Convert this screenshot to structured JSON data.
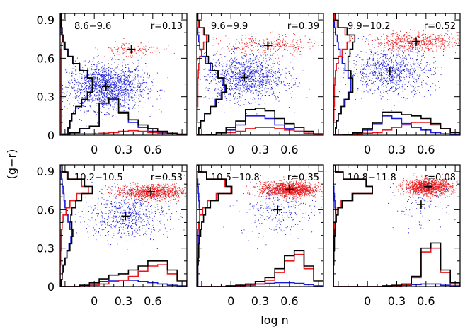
{
  "chart_data": {
    "type": "scatter",
    "xlabel": "log n",
    "ylabel": "(g−r)",
    "xlim": [
      -0.35,
      0.95
    ],
    "ylim": [
      0,
      0.95
    ],
    "xticks": [
      0,
      0.3,
      0.6
    ],
    "xtick_labels": [
      "0",
      "0.3",
      "0.6"
    ],
    "yticks": [
      0,
      0.3,
      0.6,
      0.9
    ],
    "ytick_labels": [
      "0",
      "0.3",
      "0.6",
      "0.9"
    ],
    "colors": {
      "red": "#e8191d",
      "blue": "#1a1ad9",
      "black": "#000000"
    },
    "panels": [
      {
        "range_label": "8.6−9.6",
        "r_label": "r=0.13",
        "red_center": [
          0.38,
          0.67
        ],
        "blue_center": [
          0.12,
          0.38
        ],
        "red_spread": [
          0.16,
          0.035
        ],
        "blue_spread": [
          0.2,
          0.09
        ],
        "n_red": 150,
        "n_blue": 1800,
        "hist_x": [
          0.0,
          0.02,
          0.05,
          0.07,
          0.25,
          0.29,
          0.18,
          0.12,
          0.08,
          0.05,
          0.03,
          0.015,
          0.008
        ],
        "hist_x_red": [
          0.01,
          0.01,
          0.01,
          0.01,
          0.015,
          0.02,
          0.03,
          0.035,
          0.03,
          0.02,
          0.015,
          0.01,
          0.005
        ],
        "hist_x_blue": [
          0.0,
          0.02,
          0.05,
          0.07,
          0.25,
          0.28,
          0.17,
          0.1,
          0.06,
          0.03,
          0.02,
          0.01,
          0.005
        ],
        "hist_y": [
          0.08,
          0.1,
          0.12,
          0.16,
          0.22,
          0.28,
          0.33,
          0.33,
          0.28,
          0.2,
          0.13,
          0.08,
          0.05,
          0.03,
          0.02,
          0.01,
          0.01
        ],
        "hist_y_red": [
          0.01,
          0.01,
          0.01,
          0.01,
          0.01,
          0.01,
          0.01,
          0.01,
          0.01,
          0.01,
          0.01,
          0.01,
          0.015,
          0.02,
          0.02,
          0.01,
          0.005
        ],
        "hist_y_blue": [
          0.08,
          0.1,
          0.12,
          0.16,
          0.22,
          0.28,
          0.33,
          0.33,
          0.28,
          0.2,
          0.13,
          0.08,
          0.04,
          0.02,
          0.01,
          0.005,
          0.005
        ]
      },
      {
        "range_label": "9.6−9.9",
        "r_label": "r=0.39",
        "red_center": [
          0.38,
          0.7
        ],
        "blue_center": [
          0.14,
          0.45
        ],
        "red_spread": [
          0.25,
          0.04
        ],
        "blue_spread": [
          0.2,
          0.09
        ],
        "n_red": 350,
        "n_blue": 1300,
        "hist_x": [
          0.0,
          0.005,
          0.02,
          0.06,
          0.11,
          0.2,
          0.21,
          0.19,
          0.13,
          0.09,
          0.06,
          0.03,
          0.01
        ],
        "hist_x_red": [
          0.0,
          0.0,
          0.01,
          0.02,
          0.03,
          0.05,
          0.06,
          0.06,
          0.05,
          0.04,
          0.03,
          0.015,
          0.005
        ],
        "hist_x_blue": [
          0.0,
          0.005,
          0.01,
          0.04,
          0.08,
          0.15,
          0.15,
          0.13,
          0.08,
          0.05,
          0.03,
          0.015,
          0.005
        ],
        "hist_y": [
          0.02,
          0.04,
          0.08,
          0.14,
          0.2,
          0.26,
          0.3,
          0.28,
          0.22,
          0.16,
          0.12,
          0.1,
          0.1,
          0.12,
          0.08,
          0.03,
          0.01
        ],
        "hist_y_red": [
          0.0,
          0.0,
          0.005,
          0.005,
          0.01,
          0.01,
          0.01,
          0.01,
          0.015,
          0.02,
          0.03,
          0.05,
          0.07,
          0.1,
          0.07,
          0.02,
          0.01
        ],
        "hist_y_blue": [
          0.02,
          0.04,
          0.08,
          0.14,
          0.19,
          0.25,
          0.29,
          0.27,
          0.21,
          0.14,
          0.09,
          0.05,
          0.03,
          0.02,
          0.01,
          0.005,
          0.0
        ]
      },
      {
        "range_label": "9.9−10.2",
        "r_label": "r=0.52",
        "red_center": [
          0.5,
          0.73
        ],
        "blue_center": [
          0.23,
          0.5
        ],
        "red_spread": [
          0.22,
          0.035
        ],
        "blue_spread": [
          0.22,
          0.09
        ],
        "n_red": 650,
        "n_blue": 950,
        "hist_x": [
          0.0,
          0.005,
          0.02,
          0.05,
          0.1,
          0.18,
          0.18,
          0.16,
          0.15,
          0.13,
          0.09,
          0.05,
          0.02
        ],
        "hist_x_red": [
          0.0,
          0.0,
          0.005,
          0.015,
          0.02,
          0.04,
          0.06,
          0.08,
          0.1,
          0.1,
          0.08,
          0.05,
          0.02
        ],
        "hist_x_blue": [
          0.0,
          0.005,
          0.015,
          0.04,
          0.09,
          0.15,
          0.13,
          0.09,
          0.06,
          0.04,
          0.02,
          0.01,
          0.005
        ],
        "hist_y": [
          0.02,
          0.03,
          0.05,
          0.08,
          0.12,
          0.16,
          0.2,
          0.2,
          0.18,
          0.15,
          0.15,
          0.17,
          0.2,
          0.22,
          0.14,
          0.05,
          0.02
        ],
        "hist_y_red": [
          0.0,
          0.0,
          0.005,
          0.005,
          0.01,
          0.01,
          0.01,
          0.015,
          0.02,
          0.03,
          0.05,
          0.09,
          0.14,
          0.17,
          0.12,
          0.04,
          0.01
        ],
        "hist_y_blue": [
          0.02,
          0.03,
          0.05,
          0.08,
          0.11,
          0.15,
          0.18,
          0.18,
          0.15,
          0.12,
          0.09,
          0.07,
          0.05,
          0.04,
          0.02,
          0.01,
          0.0
        ]
      },
      {
        "range_label": "10.2−10.5",
        "r_label": "r=0.53",
        "red_center": [
          0.58,
          0.74
        ],
        "blue_center": [
          0.32,
          0.55
        ],
        "red_spread": [
          0.18,
          0.03
        ],
        "blue_spread": [
          0.22,
          0.09
        ],
        "n_red": 1100,
        "n_blue": 700,
        "hist_x": [
          0.0,
          0.0,
          0.01,
          0.03,
          0.06,
          0.09,
          0.1,
          0.13,
          0.16,
          0.2,
          0.2,
          0.13,
          0.05
        ],
        "hist_x_red": [
          0.0,
          0.0,
          0.0,
          0.01,
          0.02,
          0.04,
          0.05,
          0.08,
          0.12,
          0.16,
          0.17,
          0.1,
          0.04
        ],
        "hist_x_blue": [
          0.0,
          0.0,
          0.01,
          0.02,
          0.04,
          0.05,
          0.05,
          0.05,
          0.04,
          0.03,
          0.02,
          0.01,
          0.005
        ],
        "hist_y": [
          0.01,
          0.02,
          0.03,
          0.05,
          0.07,
          0.1,
          0.12,
          0.13,
          0.12,
          0.11,
          0.12,
          0.16,
          0.22,
          0.33,
          0.25,
          0.08,
          0.02
        ],
        "hist_y_red": [
          0.0,
          0.0,
          0.0,
          0.005,
          0.005,
          0.01,
          0.01,
          0.01,
          0.02,
          0.03,
          0.06,
          0.1,
          0.17,
          0.29,
          0.22,
          0.07,
          0.015
        ],
        "hist_y_blue": [
          0.01,
          0.02,
          0.03,
          0.05,
          0.07,
          0.09,
          0.11,
          0.12,
          0.1,
          0.08,
          0.06,
          0.05,
          0.04,
          0.03,
          0.02,
          0.01,
          0.0
        ]
      },
      {
        "range_label": "10.5−10.8",
        "r_label": "r=0.35",
        "red_center": [
          0.6,
          0.76
        ],
        "blue_center": [
          0.48,
          0.6
        ],
        "red_spread": [
          0.15,
          0.03
        ],
        "blue_spread": [
          0.2,
          0.1
        ],
        "n_red": 1400,
        "n_blue": 300,
        "hist_x": [
          0.0,
          0.0,
          0.0,
          0.005,
          0.01,
          0.02,
          0.04,
          0.07,
          0.14,
          0.24,
          0.28,
          0.16,
          0.05
        ],
        "hist_x_red": [
          0.0,
          0.0,
          0.0,
          0.0,
          0.005,
          0.01,
          0.02,
          0.05,
          0.11,
          0.2,
          0.25,
          0.14,
          0.04
        ],
        "hist_x_blue": [
          0.0,
          0.0,
          0.0,
          0.005,
          0.01,
          0.015,
          0.02,
          0.025,
          0.03,
          0.03,
          0.025,
          0.015,
          0.005
        ],
        "hist_y": [
          0.01,
          0.01,
          0.01,
          0.015,
          0.02,
          0.02,
          0.03,
          0.04,
          0.05,
          0.07,
          0.09,
          0.14,
          0.22,
          0.36,
          0.3,
          0.1,
          0.02
        ],
        "hist_y_red": [
          0.0,
          0.0,
          0.0,
          0.0,
          0.005,
          0.005,
          0.01,
          0.01,
          0.02,
          0.03,
          0.06,
          0.11,
          0.2,
          0.35,
          0.29,
          0.1,
          0.02
        ],
        "hist_y_blue": [
          0.01,
          0.01,
          0.01,
          0.01,
          0.015,
          0.015,
          0.02,
          0.025,
          0.03,
          0.03,
          0.03,
          0.025,
          0.02,
          0.015,
          0.01,
          0.005,
          0.0
        ]
      },
      {
        "range_label": "10.8−11.8",
        "r_label": "r=0.08",
        "red_center": [
          0.62,
          0.78
        ],
        "blue_center": [
          0.55,
          0.64
        ],
        "red_spread": [
          0.12,
          0.03
        ],
        "blue_spread": [
          0.15,
          0.1
        ],
        "n_red": 1300,
        "n_blue": 120,
        "hist_x": [
          0.0,
          0.0,
          0.0,
          0.0,
          0.0,
          0.005,
          0.01,
          0.02,
          0.08,
          0.3,
          0.34,
          0.13,
          0.03
        ],
        "hist_x_red": [
          0.0,
          0.0,
          0.0,
          0.0,
          0.0,
          0.0,
          0.005,
          0.015,
          0.07,
          0.27,
          0.3,
          0.11,
          0.02
        ],
        "hist_x_blue": [
          0.0,
          0.0,
          0.0,
          0.0,
          0.0,
          0.005,
          0.005,
          0.01,
          0.015,
          0.02,
          0.02,
          0.01,
          0.005
        ],
        "hist_y": [
          0.0,
          0.0,
          0.0,
          0.005,
          0.005,
          0.01,
          0.01,
          0.015,
          0.02,
          0.03,
          0.05,
          0.09,
          0.2,
          0.4,
          0.34,
          0.1,
          0.02
        ],
        "hist_y_red": [
          0.0,
          0.0,
          0.0,
          0.0,
          0.0,
          0.0,
          0.005,
          0.005,
          0.01,
          0.02,
          0.04,
          0.08,
          0.19,
          0.4,
          0.33,
          0.1,
          0.02
        ],
        "hist_y_blue": [
          0.0,
          0.0,
          0.0,
          0.005,
          0.005,
          0.01,
          0.01,
          0.01,
          0.015,
          0.02,
          0.02,
          0.015,
          0.01,
          0.005,
          0.0,
          0.0,
          0.0
        ]
      }
    ]
  }
}
